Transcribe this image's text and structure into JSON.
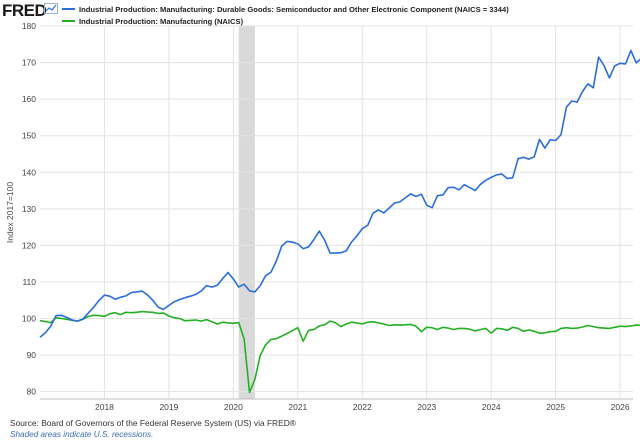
{
  "header": {
    "logo_text": "FRED",
    "logo_icon": "chart-line-icon"
  },
  "footer": {
    "source": "Source: Board of Governors of the Federal Reserve System (US) via FRED®",
    "note": "Shaded areas indicate U.S. recessions."
  },
  "colors": {
    "series_1": "#2a6ed8",
    "series_2": "#22b022",
    "recession": "#d9d9d9",
    "grid": "#e3e3e3"
  },
  "chart_data": {
    "type": "line",
    "ylabel": "Index 2017=100",
    "ylim": [
      78,
      180
    ],
    "yticks": [
      80,
      90,
      100,
      110,
      120,
      130,
      140,
      150,
      160,
      170,
      180
    ],
    "xlim": [
      2017.0,
      2026.2
    ],
    "xticks": [
      {
        "value": 2018,
        "label": "2018"
      },
      {
        "value": 2019,
        "label": "2019"
      },
      {
        "value": 2020,
        "label": "2020"
      },
      {
        "value": 2021,
        "label": "2021"
      },
      {
        "value": 2022,
        "label": "2022"
      },
      {
        "value": 2023,
        "label": "2023"
      },
      {
        "value": 2024,
        "label": "2024"
      },
      {
        "value": 2025,
        "label": "2025"
      },
      {
        "value": 2026,
        "label": "2026"
      }
    ],
    "grid": true,
    "legend": "top-left",
    "recessions": [
      {
        "start": "2020-02",
        "end": "2020-04"
      }
    ],
    "series": [
      {
        "name": "Industrial Production: Manufacturing: Durable Goods: Semiconductor and Other Electronic Component (NAICS = 3344)",
        "color": "#2a6ed8",
        "points": [
          [
            "2017-01",
            94.9
          ],
          [
            "2017-02",
            96.1
          ],
          [
            "2017-03",
            97.9
          ],
          [
            "2017-04",
            100.8
          ],
          [
            "2017-05",
            100.9
          ],
          [
            "2017-06",
            100.3
          ],
          [
            "2017-07",
            99.6
          ],
          [
            "2017-08",
            99.3
          ],
          [
            "2017-09",
            99.9
          ],
          [
            "2017-10",
            101.5
          ],
          [
            "2017-11",
            103.1
          ],
          [
            "2017-12",
            105.0
          ],
          [
            "2018-01",
            106.4
          ],
          [
            "2018-02",
            106.1
          ],
          [
            "2018-03",
            105.3
          ],
          [
            "2018-04",
            105.8
          ],
          [
            "2018-05",
            106.2
          ],
          [
            "2018-06",
            107.1
          ],
          [
            "2018-07",
            107.3
          ],
          [
            "2018-08",
            107.5
          ],
          [
            "2018-09",
            106.5
          ],
          [
            "2018-10",
            105.0
          ],
          [
            "2018-11",
            103.1
          ],
          [
            "2018-12",
            102.5
          ],
          [
            "2019-01",
            103.6
          ],
          [
            "2019-02",
            104.6
          ],
          [
            "2019-03",
            105.2
          ],
          [
            "2019-04",
            105.7
          ],
          [
            "2019-05",
            106.1
          ],
          [
            "2019-06",
            106.6
          ],
          [
            "2019-07",
            107.5
          ],
          [
            "2019-08",
            109.0
          ],
          [
            "2019-09",
            108.6
          ],
          [
            "2019-10",
            109.1
          ],
          [
            "2019-11",
            110.9
          ],
          [
            "2019-12",
            112.6
          ],
          [
            "2020-01",
            110.8
          ],
          [
            "2020-02",
            108.6
          ],
          [
            "2020-03",
            109.4
          ],
          [
            "2020-04",
            107.6
          ],
          [
            "2020-05",
            107.3
          ],
          [
            "2020-06",
            109.0
          ],
          [
            "2020-07",
            111.7
          ],
          [
            "2020-08",
            112.7
          ],
          [
            "2020-09",
            115.7
          ],
          [
            "2020-10",
            119.8
          ],
          [
            "2020-11",
            121.1
          ],
          [
            "2020-12",
            120.9
          ],
          [
            "2021-01",
            120.4
          ],
          [
            "2021-02",
            119.1
          ],
          [
            "2021-03",
            119.6
          ],
          [
            "2021-04",
            121.6
          ],
          [
            "2021-05",
            123.9
          ],
          [
            "2021-06",
            121.4
          ],
          [
            "2021-07",
            117.9
          ],
          [
            "2021-08",
            117.9
          ],
          [
            "2021-09",
            118.0
          ],
          [
            "2021-10",
            118.5
          ],
          [
            "2021-11",
            120.9
          ],
          [
            "2021-12",
            122.6
          ],
          [
            "2022-01",
            124.6
          ],
          [
            "2022-02",
            125.5
          ],
          [
            "2022-03",
            128.8
          ],
          [
            "2022-04",
            129.7
          ],
          [
            "2022-05",
            128.9
          ],
          [
            "2022-06",
            130.2
          ],
          [
            "2022-07",
            131.6
          ],
          [
            "2022-08",
            131.9
          ],
          [
            "2022-09",
            133.0
          ],
          [
            "2022-10",
            134.1
          ],
          [
            "2022-11",
            133.4
          ],
          [
            "2022-12",
            134.0
          ],
          [
            "2023-01",
            131.0
          ],
          [
            "2023-02",
            130.3
          ],
          [
            "2023-03",
            133.6
          ],
          [
            "2023-04",
            133.8
          ],
          [
            "2023-05",
            135.8
          ],
          [
            "2023-06",
            135.9
          ],
          [
            "2023-07",
            135.2
          ],
          [
            "2023-08",
            136.6
          ],
          [
            "2023-09",
            135.8
          ],
          [
            "2023-10",
            135.0
          ],
          [
            "2023-11",
            136.7
          ],
          [
            "2023-12",
            137.8
          ],
          [
            "2024-01",
            138.6
          ],
          [
            "2024-02",
            139.3
          ],
          [
            "2024-03",
            139.5
          ],
          [
            "2024-04",
            138.3
          ],
          [
            "2024-05",
            138.5
          ],
          [
            "2024-06",
            143.7
          ],
          [
            "2024-07",
            144.1
          ],
          [
            "2024-08",
            143.6
          ],
          [
            "2024-09",
            144.2
          ],
          [
            "2024-10",
            149.0
          ],
          [
            "2024-11",
            146.6
          ],
          [
            "2024-12",
            148.9
          ],
          [
            "2025-01",
            148.7
          ],
          [
            "2025-02",
            150.3
          ],
          [
            "2025-03",
            157.8
          ],
          [
            "2025-04",
            159.5
          ],
          [
            "2025-05",
            159.2
          ],
          [
            "2025-06",
            162.1
          ],
          [
            "2025-07",
            164.2
          ],
          [
            "2025-08",
            163.1
          ],
          [
            "2025-09",
            171.5
          ],
          [
            "2025-10",
            169.2
          ],
          [
            "2025-11",
            165.8
          ],
          [
            "2025-12",
            169.1
          ],
          [
            "2026-01",
            169.8
          ],
          [
            "2026-02",
            169.6
          ],
          [
            "2026-03",
            173.3
          ],
          [
            "2026-04",
            169.9
          ],
          [
            "2026-05",
            171.2
          ]
        ]
      },
      {
        "name": "Industrial Production: Manufacturing (NAICS)",
        "color": "#22b022",
        "points": [
          [
            "2017-01",
            99.4
          ],
          [
            "2017-02",
            99.2
          ],
          [
            "2017-03",
            98.9
          ],
          [
            "2017-04",
            100.2
          ],
          [
            "2017-05",
            100.0
          ],
          [
            "2017-06",
            99.8
          ],
          [
            "2017-07",
            99.5
          ],
          [
            "2017-08",
            99.3
          ],
          [
            "2017-09",
            99.8
          ],
          [
            "2017-10",
            100.6
          ],
          [
            "2017-11",
            100.9
          ],
          [
            "2017-12",
            100.8
          ],
          [
            "2018-01",
            100.6
          ],
          [
            "2018-02",
            101.3
          ],
          [
            "2018-03",
            101.6
          ],
          [
            "2018-04",
            101.1
          ],
          [
            "2018-05",
            101.7
          ],
          [
            "2018-06",
            101.6
          ],
          [
            "2018-07",
            101.7
          ],
          [
            "2018-08",
            101.9
          ],
          [
            "2018-09",
            101.8
          ],
          [
            "2018-10",
            101.7
          ],
          [
            "2018-11",
            101.4
          ],
          [
            "2018-12",
            101.5
          ],
          [
            "2019-01",
            100.7
          ],
          [
            "2019-02",
            100.2
          ],
          [
            "2019-03",
            100.0
          ],
          [
            "2019-04",
            99.4
          ],
          [
            "2019-05",
            99.5
          ],
          [
            "2019-06",
            99.6
          ],
          [
            "2019-07",
            99.3
          ],
          [
            "2019-08",
            99.7
          ],
          [
            "2019-09",
            99.1
          ],
          [
            "2019-10",
            98.5
          ],
          [
            "2019-11",
            99.0
          ],
          [
            "2019-12",
            98.8
          ],
          [
            "2020-01",
            98.7
          ],
          [
            "2020-02",
            98.9
          ],
          [
            "2020-03",
            94.5
          ],
          [
            "2020-04",
            79.8
          ],
          [
            "2020-05",
            83.4
          ],
          [
            "2020-06",
            89.9
          ],
          [
            "2020-07",
            92.8
          ],
          [
            "2020-08",
            94.3
          ],
          [
            "2020-09",
            94.5
          ],
          [
            "2020-10",
            95.2
          ],
          [
            "2020-11",
            95.9
          ],
          [
            "2020-12",
            96.7
          ],
          [
            "2021-01",
            97.5
          ],
          [
            "2021-02",
            93.8
          ],
          [
            "2021-03",
            96.8
          ],
          [
            "2021-04",
            97.0
          ],
          [
            "2021-05",
            98.0
          ],
          [
            "2021-06",
            98.3
          ],
          [
            "2021-07",
            99.3
          ],
          [
            "2021-08",
            98.9
          ],
          [
            "2021-09",
            97.8
          ],
          [
            "2021-10",
            98.5
          ],
          [
            "2021-11",
            99.0
          ],
          [
            "2021-12",
            98.8
          ],
          [
            "2022-01",
            98.5
          ],
          [
            "2022-02",
            99.0
          ],
          [
            "2022-03",
            99.1
          ],
          [
            "2022-04",
            98.8
          ],
          [
            "2022-05",
            98.5
          ],
          [
            "2022-06",
            98.1
          ],
          [
            "2022-07",
            98.3
          ],
          [
            "2022-08",
            98.2
          ],
          [
            "2022-09",
            98.3
          ],
          [
            "2022-10",
            98.4
          ],
          [
            "2022-11",
            97.9
          ],
          [
            "2022-12",
            96.4
          ],
          [
            "2023-01",
            97.6
          ],
          [
            "2023-02",
            97.5
          ],
          [
            "2023-03",
            97.0
          ],
          [
            "2023-04",
            97.6
          ],
          [
            "2023-05",
            97.4
          ],
          [
            "2023-06",
            97.0
          ],
          [
            "2023-07",
            97.3
          ],
          [
            "2023-08",
            97.3
          ],
          [
            "2023-09",
            97.1
          ],
          [
            "2023-10",
            96.6
          ],
          [
            "2023-11",
            97.0
          ],
          [
            "2023-12",
            97.3
          ],
          [
            "2024-01",
            96.0
          ],
          [
            "2024-02",
            97.3
          ],
          [
            "2024-03",
            97.2
          ],
          [
            "2024-04",
            96.8
          ],
          [
            "2024-05",
            97.6
          ],
          [
            "2024-06",
            97.3
          ],
          [
            "2024-07",
            96.5
          ],
          [
            "2024-08",
            96.9
          ],
          [
            "2024-09",
            96.5
          ],
          [
            "2024-10",
            96.0
          ],
          [
            "2024-11",
            96.1
          ],
          [
            "2024-12",
            96.4
          ],
          [
            "2025-01",
            96.5
          ],
          [
            "2025-02",
            97.3
          ],
          [
            "2025-03",
            97.5
          ],
          [
            "2025-04",
            97.3
          ],
          [
            "2025-05",
            97.4
          ],
          [
            "2025-06",
            97.7
          ],
          [
            "2025-07",
            98.1
          ],
          [
            "2025-08",
            97.8
          ],
          [
            "2025-09",
            97.5
          ],
          [
            "2025-10",
            97.4
          ],
          [
            "2025-11",
            97.3
          ],
          [
            "2025-12",
            97.6
          ],
          [
            "2026-01",
            97.9
          ],
          [
            "2026-02",
            97.8
          ],
          [
            "2026-03",
            98.0
          ],
          [
            "2026-04",
            98.2
          ],
          [
            "2026-05",
            98.1
          ]
        ]
      }
    ]
  }
}
